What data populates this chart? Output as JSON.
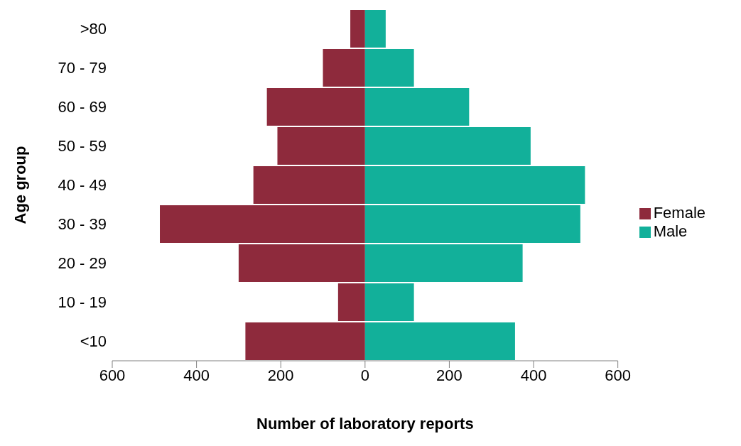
{
  "chart_data": {
    "type": "bar",
    "orientation": "horizontal",
    "stacked": true,
    "xlabel": "Number of laboratory reports",
    "ylabel": "Age group",
    "categories": [
      ">80",
      "70 - 79",
      "60 - 69",
      "50 - 59",
      "40 - 49",
      "30 - 39",
      "20 - 29",
      "10 - 19",
      "<10"
    ],
    "series": [
      {
        "name": "Female",
        "color": "#8e2a3c",
        "values": [
          -35,
          -100,
          -233,
          -208,
          -265,
          -487,
          -300,
          -64,
          -284
        ]
      },
      {
        "name": "Male",
        "color": "#12b09a",
        "values": [
          49,
          116,
          247,
          393,
          522,
          511,
          374,
          116,
          356
        ]
      }
    ],
    "xlim": [
      -600,
      600
    ],
    "xticks": [
      {
        "value": -600,
        "label": "600"
      },
      {
        "value": -400,
        "label": "400"
      },
      {
        "value": -200,
        "label": "200"
      },
      0,
      200,
      400,
      600
    ],
    "legend": "right"
  }
}
